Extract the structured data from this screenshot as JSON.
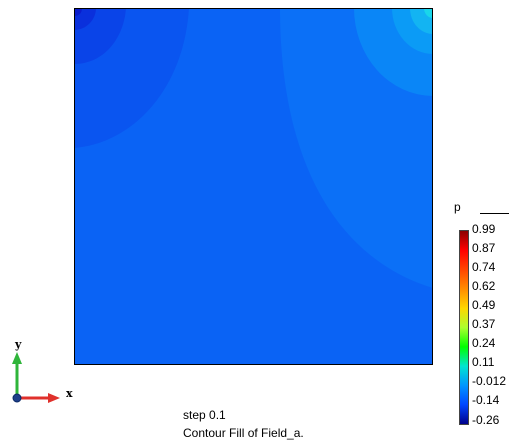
{
  "legend": {
    "title": "p",
    "ticks": [
      "0.99",
      "0.87",
      "0.74",
      "0.62",
      "0.49",
      "0.37",
      "0.24",
      "0.11",
      "-0.012",
      "-0.14",
      "-0.26"
    ]
  },
  "caption": {
    "step": "step 0.1",
    "description": "Contour Fill of Field_a."
  },
  "axes": {
    "x_label": "x",
    "y_label": "y"
  },
  "colors": {
    "field_base": "#0a63f5",
    "field_mid": "#0b70f7",
    "field_upper_right_1": "#0a86f7",
    "field_upper_right_2": "#0b9bf6",
    "field_upper_right_3": "#13b4f2",
    "field_corner_hot": "#19d6ea",
    "field_upper_left_1": "#0a55f0",
    "field_upper_left_2": "#0a44e8",
    "field_upper_left_3": "#0a30dc",
    "x_axis": "#e0312c",
    "y_axis": "#2fb53a"
  }
}
